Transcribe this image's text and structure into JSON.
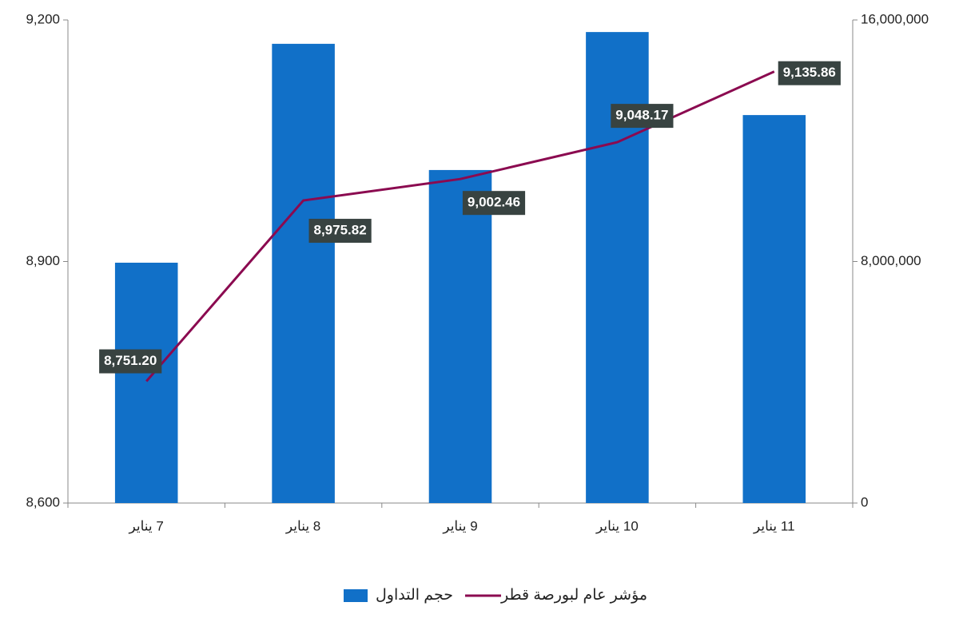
{
  "chart_data": {
    "type": "combo",
    "categories": [
      "7 يناير",
      "8 يناير",
      "9 يناير",
      "10 يناير",
      "11 يناير"
    ],
    "series": [
      {
        "name": "حجم التداول",
        "type": "bar",
        "axis": "y2",
        "color": "#1170c8",
        "values": [
          7960000,
          15210000,
          11030000,
          15600000,
          12850000
        ]
      },
      {
        "name": "مؤشر عام لبورصة قطر",
        "type": "line",
        "axis": "y",
        "color": "#8b0a50",
        "values": [
          8751.2,
          8975.82,
          9002.46,
          9048.17,
          9135.86
        ],
        "value_labels": [
          "8,751.20",
          "8,975.82",
          "9,002.46",
          "9,048.17",
          "9,135.86"
        ]
      }
    ],
    "ylim": [
      8600,
      9200
    ],
    "yticks": [
      {
        "value": 8600,
        "label": "8,600"
      },
      {
        "value": 8900,
        "label": "8,900"
      },
      {
        "value": 9200,
        "label": "9,200"
      }
    ],
    "y2lim": [
      0,
      16000000
    ],
    "y2ticks": [
      0,
      {
        "value": 8000000,
        "label": "8,000,000"
      },
      {
        "value": 16000000,
        "label": "16,000,000"
      }
    ],
    "legend": "bottom"
  }
}
